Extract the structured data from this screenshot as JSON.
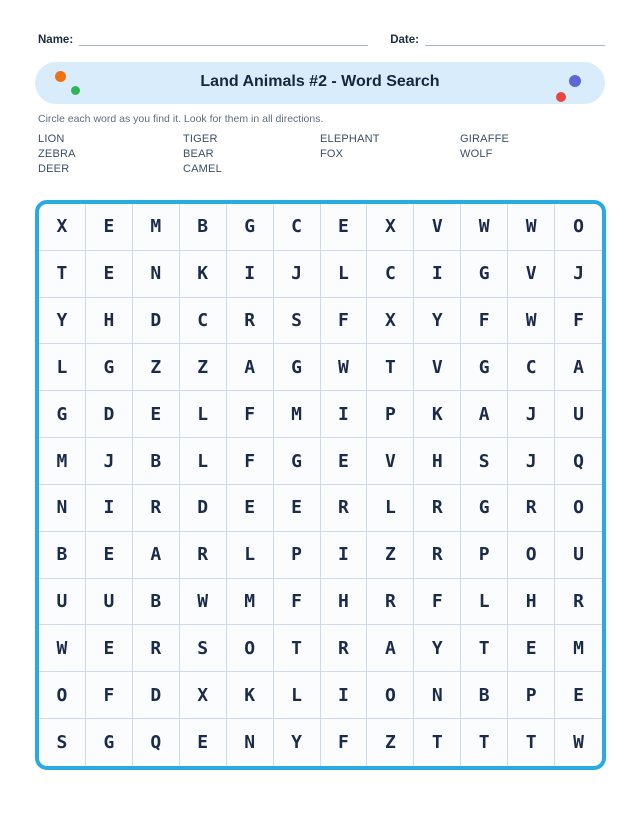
{
  "fields": {
    "name_label": "Name:",
    "date_label": "Date:"
  },
  "header": {
    "title": "Land Animals #2 - Word Search",
    "background": "#d9ecfb",
    "dots": [
      {
        "name": "orange-dot",
        "color": "#ee7212"
      },
      {
        "name": "green-dot",
        "color": "#2eb559"
      },
      {
        "name": "indigo-dot",
        "color": "#5c68d4"
      },
      {
        "name": "red-dot",
        "color": "#e8463f"
      }
    ]
  },
  "instructions": "Circle each word as you find it. Look for them in all directions.",
  "word_list": [
    "LION",
    "TIGER",
    "ELEPHANT",
    "GIRAFFE",
    "ZEBRA",
    "BEAR",
    "FOX",
    "WOLF",
    "DEER",
    "CAMEL"
  ],
  "grid": {
    "rows": [
      "XEMBGCEXVWWO",
      "TENKIJLCIGVJ",
      "YHDCRSFXYFWF",
      "LGZZAGWTVGCA",
      "GDELFMIPKAJU",
      "MJBLFGEVHSJQ",
      "NIRDEERLRGRO",
      "BEARLPIZRPOU",
      "UUBWMFHRFLHR",
      "WERSOTRAYTEM",
      "OFDXKLIONBPE",
      "SGQENYFZTTTW"
    ],
    "size": 12,
    "border_color": "#2aaae2",
    "cell_line_color": "#cfdae8",
    "letter_color": "#1c2b4a"
  }
}
